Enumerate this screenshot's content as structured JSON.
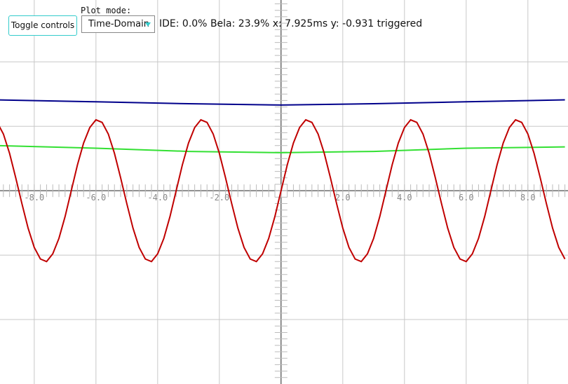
{
  "controls": {
    "toggle_button": "Toggle controls",
    "plot_mode_label": "Plot mode:",
    "plot_mode_value": "Time-Domain"
  },
  "status": "IDE: 0.0% Bela: 23.9% x: 7.925ms y: -0.931 triggered",
  "chart_data": {
    "type": "line",
    "xlim": [
      -9.11,
      9.3
    ],
    "ylim": [
      -3,
      2.96
    ],
    "xticks": [
      {
        "value": -8,
        "label": "-8.0"
      },
      {
        "value": -6,
        "label": "-6.0"
      },
      {
        "value": -4,
        "label": "-4.0"
      },
      {
        "value": -2,
        "label": "-2.0"
      },
      {
        "value": 2,
        "label": "2.0"
      },
      {
        "value": 4,
        "label": "4.0"
      },
      {
        "value": 6,
        "label": "6.0"
      },
      {
        "value": 8,
        "label": "8.0"
      }
    ],
    "yticks": [
      -2,
      -1,
      1,
      2
    ],
    "grid": true,
    "series": [
      {
        "color": "#00008b",
        "x": [
          -9.2,
          -6,
          -3,
          0,
          3,
          6,
          9.2
        ],
        "values": [
          1.41,
          1.38,
          1.35,
          1.33,
          1.35,
          1.38,
          1.41
        ]
      },
      {
        "color": "#33e033",
        "x": [
          -9.2,
          -6,
          -3,
          0,
          3,
          6,
          9.2
        ],
        "values": [
          0.7,
          0.66,
          0.61,
          0.59,
          0.61,
          0.66,
          0.68
        ]
      },
      {
        "color": "#c00000",
        "x": [
          -9.2,
          -9,
          -8.8,
          -8.6,
          -8.4,
          -8.2,
          -8,
          -7.8,
          -7.6,
          -7.4,
          -7.2,
          -7,
          -6.8,
          -6.6,
          -6.4,
          -6.2,
          -6,
          -5.8,
          -5.6,
          -5.4,
          -5.2,
          -5,
          -4.8,
          -4.6,
          -4.4,
          -4.2,
          -4,
          -3.8,
          -3.6,
          -3.4,
          -3.2,
          -3,
          -2.8,
          -2.6,
          -2.4,
          -2.2,
          -2,
          -1.8,
          -1.6,
          -1.4,
          -1.2,
          -1,
          -0.8,
          -0.6,
          -0.4,
          -0.2,
          0,
          0.2,
          0.4,
          0.6,
          0.8,
          1,
          1.2,
          1.4,
          1.6,
          1.8,
          2,
          2.2,
          2.4,
          2.6,
          2.8,
          3,
          3.2,
          3.4,
          3.6,
          3.8,
          4,
          4.2,
          4.4,
          4.6,
          4.8,
          5,
          5.2,
          5.4,
          5.6,
          5.8,
          6,
          6.2,
          6.4,
          6.6,
          6.8,
          7,
          7.2,
          7.4,
          7.6,
          7.8,
          8,
          8.2,
          8.4,
          8.6,
          8.8,
          9,
          9.2
        ],
        "values": [
          1.06,
          0.88,
          0.58,
          0.2,
          -0.2,
          -0.58,
          -0.88,
          -1.06,
          -1.1,
          -0.98,
          -0.74,
          -0.4,
          0,
          0.4,
          0.74,
          0.98,
          1.1,
          1.06,
          0.88,
          0.58,
          0.2,
          -0.2,
          -0.58,
          -0.88,
          -1.06,
          -1.1,
          -0.98,
          -0.74,
          -0.4,
          0,
          0.4,
          0.74,
          0.98,
          1.1,
          1.06,
          0.88,
          0.58,
          0.2,
          -0.2,
          -0.58,
          -0.88,
          -1.06,
          -1.1,
          -0.98,
          -0.74,
          -0.4,
          0,
          0.4,
          0.74,
          0.98,
          1.1,
          1.06,
          0.88,
          0.58,
          0.2,
          -0.2,
          -0.58,
          -0.88,
          -1.06,
          -1.1,
          -0.98,
          -0.74,
          -0.4,
          0,
          0.4,
          0.74,
          0.98,
          1.1,
          1.06,
          0.88,
          0.58,
          0.2,
          -0.2,
          -0.58,
          -0.88,
          -1.06,
          -1.1,
          -0.98,
          -0.74,
          -0.4,
          0,
          0.4,
          0.74,
          0.98,
          1.1,
          1.06,
          0.88,
          0.58,
          0.2,
          -0.2,
          -0.58,
          -0.88,
          -1.06
        ]
      }
    ]
  }
}
